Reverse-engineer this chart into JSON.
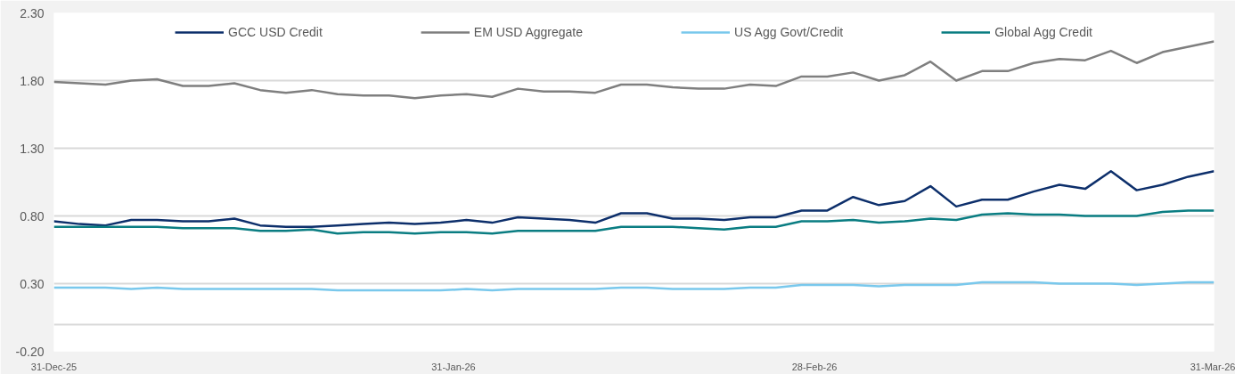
{
  "chart_data": {
    "type": "line",
    "x": [
      "2025-12-31",
      "2026-01-02",
      "2026-01-04",
      "2026-01-06",
      "2026-01-08",
      "2026-01-10",
      "2026-01-12",
      "2026-01-14",
      "2026-01-16",
      "2026-01-18",
      "2026-01-20",
      "2026-01-22",
      "2026-01-24",
      "2026-01-26",
      "2026-01-28",
      "2026-01-30",
      "2026-02-01",
      "2026-02-03",
      "2026-02-05",
      "2026-02-07",
      "2026-02-09",
      "2026-02-11",
      "2026-02-13",
      "2026-02-15",
      "2026-02-17",
      "2026-02-19",
      "2026-02-21",
      "2026-02-23",
      "2026-02-25",
      "2026-02-27",
      "2026-03-01",
      "2026-03-03",
      "2026-03-05",
      "2026-03-07",
      "2026-03-09",
      "2026-03-11",
      "2026-03-13",
      "2026-03-15",
      "2026-03-17",
      "2026-03-19",
      "2026-03-21",
      "2026-03-23",
      "2026-03-25",
      "2026-03-27",
      "2026-03-29",
      "2026-03-31"
    ],
    "series": [
      {
        "name": "GCC USD Credit",
        "color": "#0d2f6b",
        "values": [
          0.76,
          0.74,
          0.73,
          0.77,
          0.77,
          0.76,
          0.76,
          0.78,
          0.73,
          0.72,
          0.72,
          0.73,
          0.74,
          0.75,
          0.74,
          0.75,
          0.77,
          0.75,
          0.79,
          0.78,
          0.77,
          0.75,
          0.82,
          0.82,
          0.78,
          0.78,
          0.77,
          0.79,
          0.79,
          0.84,
          0.84,
          0.94,
          0.88,
          0.91,
          1.02,
          0.87,
          0.92,
          0.92,
          0.98,
          1.03,
          1.0,
          1.13,
          0.99,
          1.03,
          1.09,
          1.13
        ]
      },
      {
        "name": "EM USD Aggregate",
        "color": "#7f7f7f",
        "values": [
          1.79,
          1.78,
          1.77,
          1.8,
          1.81,
          1.76,
          1.76,
          1.78,
          1.73,
          1.71,
          1.73,
          1.7,
          1.69,
          1.69,
          1.67,
          1.69,
          1.7,
          1.68,
          1.74,
          1.72,
          1.72,
          1.71,
          1.77,
          1.77,
          1.75,
          1.74,
          1.74,
          1.77,
          1.76,
          1.83,
          1.83,
          1.86,
          1.8,
          1.84,
          1.94,
          1.8,
          1.87,
          1.87,
          1.93,
          1.96,
          1.95,
          2.02,
          1.93,
          2.01,
          2.05,
          2.09
        ]
      },
      {
        "name": "US Agg Govt/Credit",
        "color": "#79c8ec",
        "values": [
          0.27,
          0.27,
          0.27,
          0.26,
          0.27,
          0.26,
          0.26,
          0.26,
          0.26,
          0.26,
          0.26,
          0.25,
          0.25,
          0.25,
          0.25,
          0.25,
          0.26,
          0.25,
          0.26,
          0.26,
          0.26,
          0.26,
          0.27,
          0.27,
          0.26,
          0.26,
          0.26,
          0.27,
          0.27,
          0.29,
          0.29,
          0.29,
          0.28,
          0.29,
          0.29,
          0.29,
          0.31,
          0.31,
          0.31,
          0.3,
          0.3,
          0.3,
          0.29,
          0.3,
          0.31,
          0.31
        ]
      },
      {
        "name": "Global Agg Credit",
        "color": "#0a7d82",
        "values": [
          0.72,
          0.72,
          0.72,
          0.72,
          0.72,
          0.71,
          0.71,
          0.71,
          0.69,
          0.69,
          0.7,
          0.67,
          0.68,
          0.68,
          0.67,
          0.68,
          0.68,
          0.67,
          0.69,
          0.69,
          0.69,
          0.69,
          0.72,
          0.72,
          0.72,
          0.71,
          0.7,
          0.72,
          0.72,
          0.76,
          0.76,
          0.77,
          0.75,
          0.76,
          0.78,
          0.77,
          0.81,
          0.82,
          0.81,
          0.81,
          0.8,
          0.8,
          0.8,
          0.83,
          0.84,
          0.84
        ]
      }
    ],
    "xlim": [
      "2025-12-31",
      "2026-03-31"
    ],
    "xticks": [
      {
        "value": "2025-12-31",
        "label": "31-Dec-25"
      },
      {
        "value": "2026-01-31",
        "label": "31-Jan-26"
      },
      {
        "value": "2026-02-28",
        "label": "28-Feb-26"
      },
      {
        "value": "2026-03-31",
        "label": "31-Mar-26"
      }
    ],
    "ylim": [
      -0.2,
      2.3
    ],
    "yticks": [
      {
        "value": -0.2,
        "label": "-0.20"
      },
      {
        "value": 0,
        "label": null
      },
      {
        "value": 0.3,
        "label": "0.30"
      },
      {
        "value": 0.8,
        "label": "0.80"
      },
      {
        "value": 1.3,
        "label": "1.30"
      },
      {
        "value": 1.8,
        "label": "1.80"
      },
      {
        "value": 2.3,
        "label": "2.30"
      }
    ],
    "grid": "y",
    "legend": "top",
    "line_style": "solid",
    "marker": "none"
  }
}
